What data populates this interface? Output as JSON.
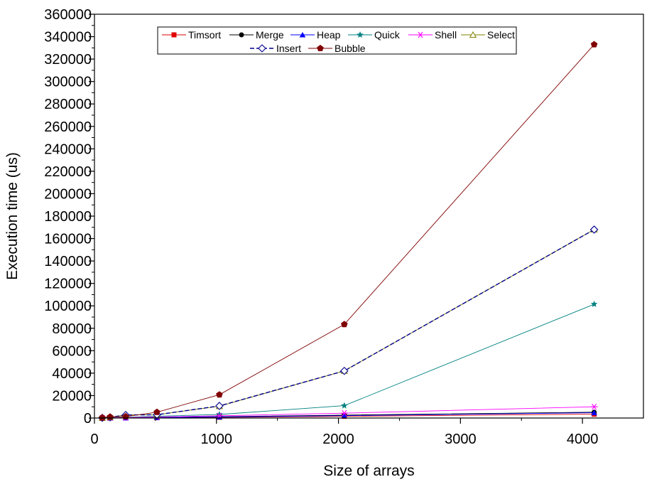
{
  "chart_data": {
    "type": "line",
    "title": "",
    "xlabel": "Size of arrays",
    "ylabel": "Execution time (us)",
    "xlim": [
      0,
      4500
    ],
    "ylim": [
      0,
      360000
    ],
    "x_ticks": [
      0,
      1000,
      2000,
      3000,
      4000
    ],
    "y_ticks": [
      0,
      20000,
      40000,
      60000,
      80000,
      100000,
      120000,
      140000,
      160000,
      180000,
      200000,
      220000,
      240000,
      260000,
      280000,
      300000,
      320000,
      340000,
      360000
    ],
    "grid": false,
    "legend_position": "top-center",
    "x": [
      64,
      128,
      256,
      512,
      1024,
      2048,
      4096
    ],
    "series": [
      {
        "name": "Timsort",
        "color": "#e00000",
        "marker": "square",
        "values": [
          30,
          60,
          130,
          300,
          650,
          1500,
          3400
        ]
      },
      {
        "name": "Merge",
        "color": "#000000",
        "marker": "circle",
        "values": [
          60,
          120,
          260,
          560,
          1200,
          2600,
          5200
        ]
      },
      {
        "name": "Heap",
        "color": "#0000ff",
        "marker": "triangle",
        "values": [
          40,
          90,
          200,
          430,
          950,
          2100,
          4700
        ]
      },
      {
        "name": "Quick",
        "color": "#008080",
        "marker": "star",
        "values": [
          90,
          250,
          700,
          1600,
          3200,
          11000,
          101500
        ]
      },
      {
        "name": "Shell",
        "color": "#ff00ff",
        "marker": "asterisk",
        "values": [
          80,
          180,
          400,
          900,
          2000,
          4300,
          10000
        ]
      },
      {
        "name": "Select",
        "color": "#808000",
        "marker": "open-triangle",
        "values": [
          200,
          700,
          2800,
          3000,
          10500,
          42000,
          168000
        ]
      },
      {
        "name": "Insert",
        "color": "#00008b",
        "marker": "open-diamond",
        "dashed": true,
        "values": [
          180,
          650,
          2700,
          2900,
          10800,
          42000,
          168000
        ]
      },
      {
        "name": "Bubble",
        "color": "#800000",
        "marker": "pentagon",
        "values": [
          300,
          1000,
          1300,
          5200,
          20800,
          83500,
          333000
        ]
      }
    ]
  }
}
